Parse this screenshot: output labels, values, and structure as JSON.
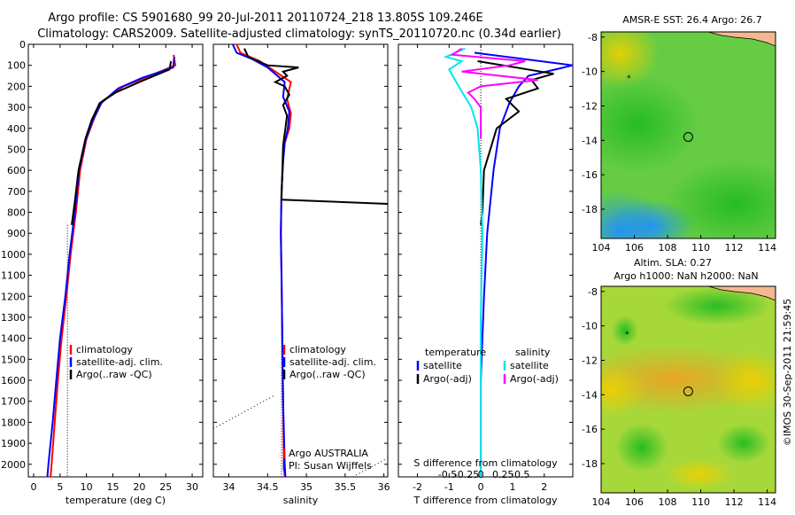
{
  "header": {
    "line1": "Argo profile: CS 5901680_99 20-Jul-2011 20110724_218 13.805S 109.246E",
    "line2": "Climatology: CARS2009. Satellite-adjusted climatology: synTS_20110720.nc (0.34d earlier)"
  },
  "credit": "©IMOS 30-Sep-2011 21:59:45",
  "colors": {
    "climatology": "#ff0000",
    "satellite": "#0000ff",
    "argo": "#000000",
    "satellite_s": "#00e5ee",
    "argo_s": "#ff00ff"
  },
  "chart_data": [
    {
      "id": "temperature",
      "type": "line",
      "xlabel": "temperature (deg C)",
      "ylabel": "",
      "xlim": [
        -1,
        32
      ],
      "ylim": [
        2060,
        0
      ],
      "xticks": [
        "0",
        "5",
        "10",
        "15",
        "20",
        "25",
        "30"
      ],
      "xtick_values": [
        0,
        5,
        10,
        15,
        20,
        25,
        30
      ],
      "yticks": [
        "0",
        "100",
        "200",
        "300",
        "400",
        "500",
        "600",
        "700",
        "800",
        "900",
        "1000",
        "1100",
        "1200",
        "1300",
        "1400",
        "1500",
        "1600",
        "1700",
        "1800",
        "1900",
        "2000"
      ],
      "legend": [
        "climatology",
        "satellite-adj. clim.",
        "Argo(..raw -QC)"
      ],
      "series": [
        {
          "name": "climatology",
          "color": "#ff0000",
          "points": [
            [
              26.5,
              50
            ],
            [
              26.8,
              100
            ],
            [
              22,
              150
            ],
            [
              17,
              200
            ],
            [
              13,
              270
            ],
            [
              11.5,
              350
            ],
            [
              10,
              450
            ],
            [
              8.8,
              600
            ],
            [
              8,
              800
            ],
            [
              7,
              1000
            ],
            [
              6.2,
              1200
            ],
            [
              5.3,
              1400
            ],
            [
              4.6,
              1600
            ],
            [
              4,
              1800
            ],
            [
              3.4,
              2000
            ],
            [
              3.2,
              2060
            ]
          ]
        },
        {
          "name": "satellite-adj. clim.",
          "color": "#0000ff",
          "points": [
            [
              26.6,
              60
            ],
            [
              26.4,
              110
            ],
            [
              20.5,
              160
            ],
            [
              16,
              210
            ],
            [
              12.8,
              280
            ],
            [
              11.2,
              360
            ],
            [
              9.8,
              460
            ],
            [
              8.6,
              600
            ],
            [
              7.8,
              800
            ],
            [
              6.8,
              1000
            ],
            [
              6,
              1200
            ],
            [
              5,
              1400
            ],
            [
              4.3,
              1600
            ],
            [
              3.6,
              1800
            ],
            [
              2.8,
              2000
            ],
            [
              2.6,
              2060
            ]
          ]
        },
        {
          "name": "Argo(..raw -QC)",
          "color": "#000000",
          "points": [
            [
              26,
              80
            ],
            [
              25.7,
              120
            ],
            [
              20,
              180
            ],
            [
              15.5,
              230
            ],
            [
              12.5,
              280
            ],
            [
              11,
              360
            ],
            [
              9.8,
              450
            ],
            [
              8.5,
              600
            ],
            [
              7.8,
              750
            ],
            [
              7.2,
              860
            ]
          ]
        }
      ]
    },
    {
      "id": "salinity",
      "type": "line",
      "xlabel": "salinity",
      "ylabel": "",
      "xlim": [
        33.8,
        36.05
      ],
      "ylim": [
        2060,
        0
      ],
      "xticks": [
        "34",
        "34.5",
        "35",
        "35.5",
        "36"
      ],
      "xtick_values": [
        34,
        34.5,
        35,
        35.5,
        36
      ],
      "legend": [
        "climatology",
        "satellite-adj. clim.",
        "Argo(..raw -QC)"
      ],
      "annotation": [
        "Argo AUSTRALIA",
        "PI: Susan Wijffels"
      ],
      "series": [
        {
          "name": "climatology",
          "color": "#ff0000",
          "points": [
            [
              34.1,
              0
            ],
            [
              34.15,
              40
            ],
            [
              34.4,
              80
            ],
            [
              34.8,
              180
            ],
            [
              34.75,
              260
            ],
            [
              34.8,
              330
            ],
            [
              34.78,
              400
            ],
            [
              34.72,
              470
            ],
            [
              34.7,
              550
            ],
            [
              34.68,
              700
            ],
            [
              34.67,
              900
            ],
            [
              34.68,
              1100
            ],
            [
              34.69,
              1400
            ],
            [
              34.7,
              1700
            ],
            [
              34.71,
              2000
            ],
            [
              34.72,
              2060
            ]
          ]
        },
        {
          "name": "satellite-adj. clim.",
          "color": "#0000ff",
          "points": [
            [
              34.05,
              0
            ],
            [
              34.1,
              40
            ],
            [
              34.3,
              70
            ],
            [
              34.5,
              110
            ],
            [
              34.72,
              180
            ],
            [
              34.7,
              250
            ],
            [
              34.78,
              320
            ],
            [
              34.76,
              400
            ],
            [
              34.72,
              470
            ],
            [
              34.7,
              560
            ],
            [
              34.68,
              700
            ],
            [
              34.67,
              900
            ],
            [
              34.68,
              1100
            ],
            [
              34.69,
              1400
            ],
            [
              34.7,
              1700
            ],
            [
              34.72,
              2000
            ],
            [
              34.73,
              2060
            ]
          ]
        },
        {
          "name": "Argo(..raw -QC)",
          "color": "#000000",
          "points": [
            [
              34.2,
              20
            ],
            [
              34.25,
              60
            ],
            [
              34.5,
              100
            ],
            [
              34.9,
              110
            ],
            [
              34.7,
              130
            ],
            [
              34.75,
              150
            ],
            [
              34.6,
              180
            ],
            [
              34.72,
              200
            ],
            [
              34.78,
              240
            ],
            [
              34.7,
              290
            ],
            [
              34.75,
              340
            ],
            [
              34.73,
              400
            ],
            [
              34.7,
              480
            ],
            [
              34.69,
              600
            ],
            [
              34.68,
              740
            ],
            [
              36.05,
              760
            ]
          ]
        }
      ]
    },
    {
      "id": "difference",
      "type": "line",
      "xlabel": "T difference from climatology",
      "xlabel_top": "S difference from climatology",
      "ylabel": "",
      "xlim": [
        -2.6,
        2.9
      ],
      "ylim": [
        2060,
        0
      ],
      "xticks": [
        "-2",
        "-1",
        "0",
        "1",
        "2"
      ],
      "xtick_values": [
        -2,
        -1,
        0,
        1,
        2
      ],
      "xticks_s": [
        "-0.5",
        "-0.25",
        "0",
        "0.25",
        "0.5"
      ],
      "legend_titles": [
        "temperature",
        "salinity"
      ],
      "legend": [
        "satellite",
        "Argo(-adj)",
        "satellite",
        "Argo(-adj)"
      ],
      "series": [
        {
          "name": "T satellite",
          "color": "#0000ff",
          "points": [
            [
              -0.2,
              40
            ],
            [
              2.9,
              100
            ],
            [
              1.5,
              150
            ],
            [
              1.2,
              200
            ],
            [
              0.9,
              280
            ],
            [
              0.6,
              400
            ],
            [
              0.4,
              600
            ],
            [
              0.2,
              900
            ],
            [
              0.1,
              1200
            ],
            [
              0,
              1600
            ],
            [
              0,
              2060
            ]
          ]
        },
        {
          "name": "T Argo(-adj)",
          "color": "#000000",
          "points": [
            [
              -0.1,
              80
            ],
            [
              2.3,
              140
            ],
            [
              1.6,
              170
            ],
            [
              1.8,
              210
            ],
            [
              0.8,
              260
            ],
            [
              1.2,
              320
            ],
            [
              0.5,
              400
            ],
            [
              0.3,
              500
            ],
            [
              0.1,
              600
            ],
            [
              0.05,
              800
            ],
            [
              0,
              860
            ]
          ]
        },
        {
          "name": "S satellite",
          "color": "#00e5ee",
          "points": [
            [
              -0.5,
              20
            ],
            [
              -1.1,
              60
            ],
            [
              -0.6,
              80
            ],
            [
              -1,
              120
            ],
            [
              -0.7,
              200
            ],
            [
              -0.3,
              300
            ],
            [
              -0.1,
              400
            ],
            [
              0,
              600
            ],
            [
              0.05,
              900
            ],
            [
              0,
              1300
            ],
            [
              0,
              2060
            ]
          ]
        },
        {
          "name": "S Argo(-adj)",
          "color": "#ff00ff",
          "points": [
            [
              -0.6,
              20
            ],
            [
              -0.9,
              50
            ],
            [
              1.4,
              80
            ],
            [
              0.9,
              100
            ],
            [
              -0.6,
              130
            ],
            [
              1.8,
              170
            ],
            [
              0,
              200
            ],
            [
              -0.4,
              230
            ],
            [
              -0.2,
              260
            ],
            [
              0,
              300
            ],
            [
              0,
              450
            ]
          ]
        }
      ]
    },
    {
      "id": "sst_map",
      "type": "heatmap",
      "title": "AMSR-E SST: 26.4 Argo: 26.7",
      "xlim": [
        104,
        114.5
      ],
      "ylim": [
        -19.7,
        -7.7
      ],
      "xticks": [
        "104",
        "106",
        "108",
        "110",
        "112",
        "114"
      ],
      "yticks": [
        "-8",
        "-10",
        "-12",
        "-14",
        "-16",
        "-18"
      ],
      "marker": [
        109.246,
        -13.805
      ]
    },
    {
      "id": "sla_map",
      "type": "heatmap",
      "title": "Altim. SLA: 0.27",
      "subtitle": "Argo h1000: NaN h2000: NaN",
      "xlim": [
        104,
        114.5
      ],
      "ylim": [
        -19.7,
        -7.7
      ],
      "xticks": [
        "104",
        "106",
        "108",
        "110",
        "112",
        "114"
      ],
      "yticks": [
        "-8",
        "-10",
        "-12",
        "-14",
        "-16",
        "-18"
      ],
      "marker": [
        109.246,
        -13.805
      ]
    }
  ]
}
